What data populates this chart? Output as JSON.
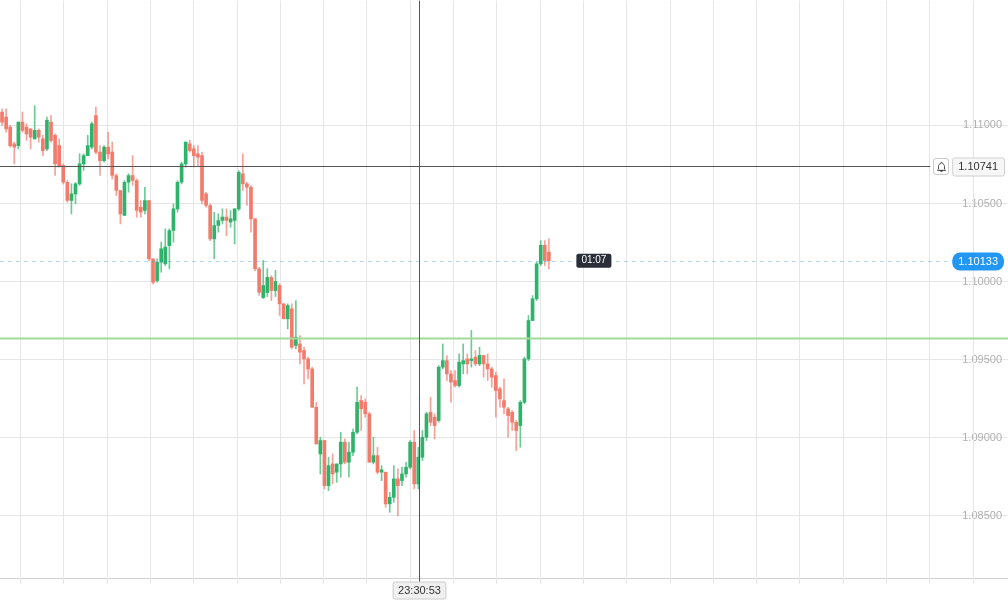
{
  "chart_data": {
    "type": "candlestick",
    "categories": [
      null,
      null,
      null,
      null,
      null,
      null,
      null,
      null,
      null,
      null,
      null,
      null,
      null,
      null,
      null,
      null,
      null,
      null,
      null,
      null,
      null,
      null,
      null,
      null,
      null,
      null,
      null,
      null,
      null,
      null,
      null,
      null,
      null,
      null,
      null,
      null,
      null,
      null,
      null,
      null,
      null,
      null,
      null,
      null,
      null,
      null,
      null,
      null,
      null,
      null,
      null,
      null,
      null,
      null,
      null,
      null,
      null,
      null,
      null,
      null,
      null,
      null,
      null,
      null,
      null,
      null,
      null,
      null,
      null,
      null,
      null,
      null,
      null,
      null,
      null,
      null,
      null,
      null,
      null,
      null,
      null,
      null,
      null,
      null,
      null,
      null,
      null,
      null,
      null,
      null,
      null,
      null,
      null,
      null,
      null,
      null,
      null,
      null,
      null,
      null,
      null,
      null,
      null,
      null,
      null,
      null,
      null,
      null,
      null,
      null,
      null,
      null,
      null,
      null,
      null,
      null,
      null,
      null,
      null,
      null,
      null,
      null,
      null,
      null,
      null,
      null,
      null,
      null,
      null,
      null,
      null,
      null,
      null,
      null,
      null,
      null,
      null,
      null,
      null,
      null,
      null,
      null,
      null,
      null,
      null,
      null,
      null,
      null,
      null,
      null,
      null,
      null,
      null,
      null,
      null,
      null,
      null,
      null,
      null,
      null,
      null,
      null,
      null,
      null,
      null,
      null,
      null,
      null,
      null,
      null,
      null,
      null,
      null,
      null,
      null,
      null,
      null,
      null,
      null,
      null,
      null,
      null,
      null,
      null,
      null,
      null,
      null,
      null,
      null,
      null,
      null,
      null,
      null,
      null,
      null,
      null,
      null,
      null,
      null,
      null,
      null,
      null,
      null,
      null,
      null,
      null,
      null,
      null,
      null,
      null,
      null,
      null,
      null,
      null,
      null,
      null,
      null,
      null,
      null,
      null,
      null,
      null,
      null,
      null,
      null,
      null,
      null,
      null,
      null,
      null,
      null,
      null,
      null,
      null,
      null,
      null,
      null,
      null,
      null,
      null,
      null,
      null,
      null,
      null,
      null,
      null,
      null
    ],
    "ohlc": [
      [
        1.11085,
        1.11106,
        1.11,
        1.11021
      ],
      [
        1.11053,
        1.11106,
        1.10957,
        1.10978
      ],
      [
        1.10989,
        1.11,
        1.10861,
        1.10871
      ],
      [
        1.10882,
        1.10893,
        1.10754,
        1.10861
      ],
      [
        1.10871,
        1.11021,
        1.1085,
        1.11021
      ],
      [
        1.11021,
        1.11085,
        1.10957,
        1.10968
      ],
      [
        1.10989,
        1.1101,
        1.10904,
        1.10946
      ],
      [
        1.10978,
        1.10978,
        1.1085,
        1.10925
      ],
      [
        1.10914,
        1.11128,
        1.10914,
        1.10968
      ],
      [
        1.10968,
        1.10978,
        1.10893,
        1.10925
      ],
      [
        1.10914,
        1.10936,
        1.10807,
        1.10839
      ],
      [
        1.1085,
        1.11053,
        1.10839,
        1.11032
      ],
      [
        1.11021,
        1.11064,
        1.10893,
        1.10904
      ],
      [
        1.10936,
        1.10946,
        1.10679,
        1.10754
      ],
      [
        1.10871,
        1.10914,
        1.10733,
        1.10743
      ],
      [
        1.10743,
        1.10754,
        1.10626,
        1.10636
      ],
      [
        1.10636,
        1.10647,
        1.10508,
        1.10519
      ],
      [
        1.10519,
        1.10626,
        1.10433,
        1.10562
      ],
      [
        1.10562,
        1.10636,
        1.10497,
        1.10626
      ],
      [
        1.10626,
        1.10818,
        1.10615,
        1.10754
      ],
      [
        1.10754,
        1.10818,
        1.10711,
        1.10807
      ],
      [
        1.10807,
        1.10936,
        1.10807,
        1.10871
      ],
      [
        1.10861,
        1.11021,
        1.1085,
        1.1101
      ],
      [
        1.11064,
        1.11117,
        1.10818,
        1.10829
      ],
      [
        1.10829,
        1.10871,
        1.10679,
        1.10775
      ],
      [
        1.10775,
        1.10871,
        1.10765,
        1.10861
      ],
      [
        1.10861,
        1.10957,
        1.10786,
        1.10818
      ],
      [
        1.10829,
        1.10893,
        1.10658,
        1.10679
      ],
      [
        1.10679,
        1.1069,
        1.10551,
        1.10583
      ],
      [
        1.10583,
        1.10583,
        1.10369,
        1.10433
      ],
      [
        1.10423,
        1.10647,
        1.10423,
        1.10636
      ],
      [
        1.10636,
        1.1069,
        1.10572,
        1.10679
      ],
      [
        1.10679,
        1.10807,
        1.10615,
        1.10647
      ],
      [
        1.10647,
        1.10658,
        1.10412,
        1.10455
      ],
      [
        1.10476,
        1.10519,
        1.10412,
        1.10444
      ],
      [
        1.10455,
        1.10604,
        1.10433,
        1.10519
      ],
      [
        1.10519,
        1.10519,
        1.10134,
        1.10145
      ],
      [
        1.10145,
        1.10145,
        1.09985,
        1.09995
      ],
      [
        1.10006,
        1.10145,
        1.09995,
        1.10124
      ],
      [
        1.10124,
        1.10252,
        1.10059,
        1.10209
      ],
      [
        1.10113,
        1.10337,
        1.10102,
        1.1022
      ],
      [
        1.1023,
        1.10337,
        1.10081,
        1.10327
      ],
      [
        1.10327,
        1.10497,
        1.10252,
        1.10465
      ],
      [
        1.10465,
        1.10647,
        1.10444,
        1.10636
      ],
      [
        1.10636,
        1.10765,
        1.10626,
        1.10754
      ],
      [
        1.10754,
        1.10893,
        1.10733,
        1.10893
      ],
      [
        1.10882,
        1.10904,
        1.10829,
        1.10839
      ],
      [
        1.1085,
        1.10871,
        1.10733,
        1.10807
      ],
      [
        1.10818,
        1.10871,
        1.10743,
        1.10797
      ],
      [
        1.10807,
        1.10829,
        1.10497,
        1.10519
      ],
      [
        1.10562,
        1.10572,
        1.10476,
        1.10487
      ],
      [
        1.10487,
        1.10497,
        1.10262,
        1.10273
      ],
      [
        1.10273,
        1.10444,
        1.10145,
        1.10359
      ],
      [
        1.10359,
        1.10433,
        1.10316,
        1.10391
      ],
      [
        1.10391,
        1.10465,
        1.10369,
        1.10412
      ],
      [
        1.10412,
        1.10465,
        1.10294,
        1.10391
      ],
      [
        1.1038,
        1.10455,
        1.10348,
        1.10401
      ],
      [
        1.10391,
        1.10465,
        1.10241,
        1.10465
      ],
      [
        1.10465,
        1.10711,
        1.10455,
        1.107
      ],
      [
        1.1069,
        1.10818,
        1.10583,
        1.10626
      ],
      [
        1.10626,
        1.10636,
        1.10487,
        1.10604
      ],
      [
        1.10604,
        1.10615,
        1.10316,
        1.10401
      ],
      [
        1.10401,
        1.10401,
        1.1007,
        1.10081
      ],
      [
        1.10081,
        1.10091,
        1.0991,
        1.09931
      ],
      [
        1.09897,
        1.10135,
        1.09891,
        1.09974
      ],
      [
        1.09929,
        1.10083,
        1.09904,
        1.10026
      ],
      [
        1.10026,
        1.10038,
        1.09878,
        1.09942
      ],
      [
        1.09942,
        1.10071,
        1.09904,
        1.1
      ],
      [
        1.09974,
        1.09985,
        1.09782,
        1.09857
      ],
      [
        1.09857,
        1.09857,
        1.09761,
        1.09761
      ],
      [
        1.09761,
        1.09857,
        1.09696,
        1.09846
      ],
      [
        1.09825,
        1.09857,
        1.09568,
        1.09579
      ],
      [
        1.0959,
        1.09878,
        1.09568,
        1.09643
      ],
      [
        1.096,
        1.09654,
        1.09472,
        1.09547
      ],
      [
        1.09558,
        1.09579,
        1.09344,
        1.09504
      ],
      [
        1.09504,
        1.09515,
        1.09376,
        1.0944
      ],
      [
        1.0944,
        1.09451,
        1.09194,
        1.09194
      ],
      [
        1.09194,
        1.09226,
        1.08959,
        1.08959
      ],
      [
        1.08895,
        1.09002,
        1.08767,
        1.08981
      ],
      [
        1.08981,
        1.08981,
        1.08671,
        1.08692
      ],
      [
        1.08692,
        1.08874,
        1.0866,
        1.0882
      ],
      [
        1.08831,
        1.08895,
        1.08703,
        1.08767
      ],
      [
        1.08778,
        1.08831,
        1.08713,
        1.08831
      ],
      [
        1.08831,
        1.09034,
        1.08746,
        1.0897
      ],
      [
        1.0897,
        1.08992,
        1.08831,
        1.08842
      ],
      [
        1.08842,
        1.0897,
        1.08746,
        1.08906
      ],
      [
        1.08906,
        1.09055,
        1.08884,
        1.09034
      ],
      [
        1.09034,
        1.09323,
        1.09023,
        1.09226
      ],
      [
        1.09237,
        1.09269,
        1.09045,
        1.09184
      ],
      [
        1.09226,
        1.09248,
        1.0913,
        1.09152
      ],
      [
        1.09152,
        1.09162,
        1.08842,
        1.08842
      ],
      [
        1.08842,
        1.09002,
        1.08831,
        1.08884
      ],
      [
        1.08884,
        1.08938,
        1.08767,
        1.08778
      ],
      [
        1.08778,
        1.0882,
        1.08724,
        1.08793
      ],
      [
        1.08778,
        1.08778,
        1.08553,
        1.08575
      ],
      [
        1.08575,
        1.08649,
        1.08521,
        1.08617
      ],
      [
        1.08617,
        1.0882,
        1.08585,
        1.08735
      ],
      [
        1.08735,
        1.08799,
        1.085,
        1.08692
      ],
      [
        1.08724,
        1.0881,
        1.08692,
        1.08767
      ],
      [
        1.08767,
        1.08842,
        1.08746,
        1.0881
      ],
      [
        1.0881,
        1.08981,
        1.08799,
        1.0897
      ],
      [
        1.0897,
        1.09045,
        1.08671,
        1.08703
      ],
      [
        1.08703,
        1.08938,
        1.08671,
        1.08874
      ],
      [
        1.08874,
        1.09045,
        1.08852,
        1.09002
      ],
      [
        1.09002,
        1.09162,
        1.08981,
        1.09152
      ],
      [
        1.09162,
        1.09258,
        1.09077,
        1.09098
      ],
      [
        1.0913,
        1.09152,
        1.08992,
        1.09077
      ],
      [
        1.09109,
        1.09461,
        1.09098,
        1.09451
      ],
      [
        1.09451,
        1.096,
        1.0944,
        1.09493
      ],
      [
        1.09493,
        1.09526,
        1.09365,
        1.09408
      ],
      [
        1.09408,
        1.09429,
        1.09226,
        1.09355
      ],
      [
        1.09365,
        1.09429,
        1.09323,
        1.09333
      ],
      [
        1.09333,
        1.09536,
        1.09323,
        1.09483
      ],
      [
        1.09472,
        1.096,
        1.09408,
        1.09493
      ],
      [
        1.09504,
        1.09536,
        1.09408,
        1.09472
      ],
      [
        1.09493,
        1.09686,
        1.09451,
        1.09504
      ],
      [
        1.09515,
        1.09558,
        1.09461,
        1.09472
      ],
      [
        1.09472,
        1.09579,
        1.09461,
        1.09526
      ],
      [
        1.09526,
        1.09526,
        1.09387,
        1.09472
      ],
      [
        1.09472,
        1.09536,
        1.09365,
        1.0944
      ],
      [
        1.0944,
        1.09451,
        1.09323,
        1.09387
      ],
      [
        1.09397,
        1.09419,
        1.0913,
        1.09301
      ],
      [
        1.09312,
        1.09323,
        1.09194,
        1.09248
      ],
      [
        1.09237,
        1.09376,
        1.09152,
        1.09194
      ],
      [
        1.09184,
        1.09194,
        1.09002,
        1.09141
      ],
      [
        1.09162,
        1.09173,
        1.09045,
        1.09098
      ],
      [
        1.09098,
        1.09109,
        1.08916,
        1.09045
      ],
      [
        1.09077,
        1.09237,
        1.08938,
        1.09226
      ],
      [
        1.09226,
        1.09515,
        1.09216,
        1.09504
      ],
      [
        1.09504,
        1.09782,
        1.09493,
        1.0975
      ],
      [
        1.0975,
        1.0991,
        1.0975,
        1.09889
      ],
      [
        1.09889,
        1.10124,
        1.09878,
        1.10113
      ],
      [
        1.10113,
        1.10263,
        1.10102,
        1.10231
      ],
      [
        1.10231,
        1.10263,
        1.10102,
        1.10135
      ],
      [
        1.10188,
        1.10273,
        1.10081,
        1.10133
      ],
      null,
      null,
      null,
      null,
      null,
      null,
      null,
      null,
      null,
      null,
      null,
      null,
      null,
      null,
      null,
      null,
      null,
      null,
      null,
      null,
      null,
      null,
      null,
      null,
      null,
      null,
      null,
      null,
      null,
      null,
      null,
      null,
      null,
      null,
      null,
      null,
      null,
      null,
      null,
      null,
      null,
      null,
      null,
      null,
      null,
      null,
      null,
      null,
      null,
      null,
      null,
      null,
      null,
      null,
      null,
      null,
      null,
      null,
      null,
      null,
      null,
      null,
      null,
      null,
      null,
      null,
      null,
      null,
      null,
      null,
      null,
      null,
      null,
      null,
      null,
      null,
      null,
      null,
      null,
      null,
      null,
      null,
      null,
      null,
      null,
      null,
      null,
      null,
      null,
      null,
      null,
      null,
      null,
      null,
      null,
      null,
      null,
      null,
      null,
      null,
      null,
      null,
      null,
      null,
      null,
      null,
      null,
      null,
      null,
      null,
      null,
      null
    ],
    "colors": [
      "#f27b6b",
      "#f27b6b",
      "#f27b6b",
      "#f27b6b",
      "#2fb36a",
      "#f27b6b",
      "#f27b6b",
      "#f27b6b",
      "#2fb36a",
      "#f27b6b",
      "#f27b6b",
      "#2fb36a",
      "#f27b6b",
      "#f27b6b",
      "#f27b6b",
      "#f27b6b",
      "#f27b6b",
      "#2fb36a",
      "#2fb36a",
      "#2fb36a",
      "#2fb36a",
      "#2fb36a",
      "#2fb36a",
      "#f27b6b",
      "#f27b6b",
      "#2fb36a",
      "#f27b6b",
      "#f27b6b",
      "#f27b6b",
      "#f27b6b",
      "#2fb36a",
      "#2fb36a",
      "#f27b6b",
      "#f27b6b",
      "#f27b6b",
      "#2fb36a",
      "#f27b6b",
      "#f27b6b",
      "#2fb36a",
      "#2fb36a",
      "#2fb36a",
      "#2fb36a",
      "#2fb36a",
      "#2fb36a",
      "#2fb36a",
      "#2fb36a",
      "#f27b6b",
      "#f27b6b",
      "#f27b6b",
      "#f27b6b",
      "#f27b6b",
      "#f27b6b",
      "#2fb36a",
      "#2fb36a",
      "#2fb36a",
      "#f27b6b",
      "#2fb36a",
      "#2fb36a",
      "#2fb36a",
      "#f27b6b",
      "#f27b6b",
      "#f27b6b",
      "#f27b6b",
      "#f27b6b",
      "#2fb36a",
      "#2fb36a",
      "#f27b6b",
      "#2fb36a",
      "#f27b6b",
      "#f27b6b",
      "#2fb36a",
      "#f27b6b",
      "#2fb36a",
      "#f27b6b",
      "#f27b6b",
      "#f27b6b",
      "#f27b6b",
      "#f27b6b",
      "#2fb36a",
      "#f27b6b",
      "#2fb36a",
      "#f27b6b",
      "#2fb36a",
      "#2fb36a",
      "#f27b6b",
      "#2fb36a",
      "#2fb36a",
      "#2fb36a",
      "#f27b6b",
      "#f27b6b",
      "#f27b6b",
      "#2fb36a",
      "#f27b6b",
      "#2fb36a",
      "#f27b6b",
      "#2fb36a",
      "#2fb36a",
      "#f27b6b",
      "#2fb36a",
      "#2fb36a",
      "#2fb36a",
      "#f27b6b",
      "#2fb36a",
      "#2fb36a",
      "#2fb36a",
      "#f27b6b",
      "#f27b6b",
      "#2fb36a",
      "#2fb36a",
      "#f27b6b",
      "#f27b6b",
      "#f27b6b",
      "#2fb36a",
      "#2fb36a",
      "#f27b6b",
      "#2fb36a",
      "#f27b6b",
      "#2fb36a",
      "#f27b6b",
      "#f27b6b",
      "#f27b6b",
      "#f27b6b",
      "#f27b6b",
      "#f27b6b",
      "#f27b6b",
      "#f27b6b",
      "#f27b6b",
      "#2fb36a",
      "#2fb36a",
      "#2fb36a",
      "#2fb36a",
      "#2fb36a",
      "#2fb36a",
      "#f27b6b",
      "#f27b6b",
      null,
      null,
      null,
      null,
      null,
      null,
      null,
      null,
      null,
      null,
      null,
      null,
      null,
      null,
      null,
      null,
      null,
      null,
      null,
      null,
      null,
      null,
      null,
      null,
      null,
      null,
      null,
      null,
      null,
      null,
      null,
      null,
      null,
      null,
      null,
      null,
      null,
      null,
      null,
      null,
      null,
      null,
      null,
      null,
      null,
      null,
      null,
      null,
      null,
      null,
      null,
      null,
      null,
      null,
      null,
      null,
      null,
      null,
      null,
      null,
      null,
      null,
      null,
      null,
      null,
      null,
      null,
      null,
      null,
      null,
      null,
      null,
      null,
      null,
      null,
      null,
      null,
      null,
      null,
      null,
      null,
      null,
      null,
      null,
      null,
      null,
      null,
      null,
      null,
      null,
      null,
      null,
      null,
      null,
      null,
      null,
      null,
      null,
      null,
      null,
      null,
      null,
      null,
      null,
      null,
      null,
      null,
      null,
      null,
      null,
      null,
      null
    ],
    "ylim": [
      1.081,
      1.118
    ],
    "yticks": [
      {
        "value": 1.085,
        "label": "1.08500"
      },
      {
        "value": 1.09,
        "label": "1.09000"
      },
      {
        "value": 1.095,
        "label": "1.09500"
      },
      {
        "value": 1.1,
        "label": "1.10000"
      },
      {
        "value": 1.105,
        "label": "1.10500"
      },
      {
        "value": 1.11,
        "label": "1.11000"
      }
    ],
    "grid": true,
    "ref_lines": [
      {
        "axis": "y",
        "value": 1.10741,
        "label": "1.10741",
        "color": "#555555",
        "line_style": "solid"
      },
      {
        "axis": "y",
        "value": 1.10133,
        "label": "1.10133",
        "color": "#2196f3",
        "line_style": "dashed"
      },
      {
        "axis": "y",
        "value": 1.0964,
        "color": "#a3d99b",
        "line_style": "solid"
      }
    ],
    "annotations": [
      {
        "text": "01:07",
        "y": 1.10133
      },
      "23:30:53"
    ]
  }
}
